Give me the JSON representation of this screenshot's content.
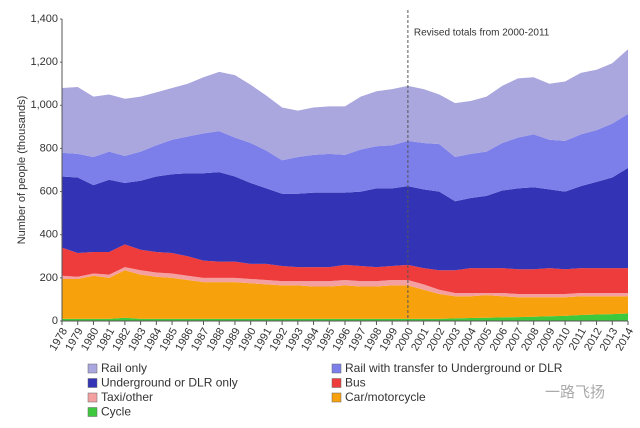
{
  "chart_data": {
    "type": "stacked-area",
    "y_label": "Number of people (thousands)",
    "annotation": {
      "text": "Revised totals from 2000-2011",
      "x": "2000"
    },
    "watermark": "一路飞扬",
    "categories": [
      "1978",
      "1979",
      "1980",
      "1981",
      "1982",
      "1983",
      "1984",
      "1985",
      "1986",
      "1987",
      "1988",
      "1989",
      "1990",
      "1991",
      "1992",
      "1993",
      "1994",
      "1995",
      "1996",
      "1997",
      "1998",
      "1999",
      "2000",
      "2001",
      "2002",
      "2003",
      "2004",
      "2005",
      "2006",
      "2007",
      "2008",
      "2009",
      "2010",
      "2011",
      "2012",
      "2013",
      "2014"
    ],
    "ylim": [
      0,
      1400
    ],
    "yticks": [
      0,
      200,
      400,
      600,
      800,
      {
        "value": 1000,
        "label": "1,000"
      },
      {
        "value": 1200,
        "label": "1,200"
      },
      {
        "value": 1400,
        "label": "1,400"
      }
    ],
    "series": [
      {
        "name": "Rail only",
        "color": "#aaa6de",
        "values": [
          300,
          310,
          280,
          265,
          265,
          255,
          245,
          240,
          245,
          260,
          275,
          290,
          270,
          255,
          245,
          215,
          220,
          220,
          225,
          245,
          255,
          260,
          255,
          250,
          230,
          250,
          245,
          255,
          265,
          275,
          265,
          260,
          275,
          285,
          280,
          280,
          300
        ]
      },
      {
        "name": "Rail with transfer to Underground or DLR",
        "color": "#7c7fea",
        "values": [
          110,
          110,
          130,
          130,
          125,
          135,
          145,
          160,
          170,
          185,
          190,
          180,
          185,
          175,
          155,
          170,
          175,
          180,
          175,
          195,
          195,
          200,
          210,
          215,
          220,
          205,
          205,
          205,
          220,
          235,
          245,
          230,
          235,
          240,
          240,
          250,
          250
        ]
      },
      {
        "name": "Underground or DLR only",
        "color": "#3333b5",
        "values": [
          330,
          350,
          310,
          335,
          285,
          320,
          350,
          365,
          385,
          405,
          415,
          395,
          375,
          350,
          335,
          340,
          345,
          345,
          335,
          345,
          365,
          360,
          365,
          365,
          365,
          320,
          325,
          335,
          360,
          375,
          380,
          365,
          360,
          380,
          400,
          420,
          465
        ]
      },
      {
        "name": "Bus",
        "color": "#ee3b3b",
        "values": [
          130,
          110,
          100,
          105,
          105,
          95,
          95,
          95,
          90,
          80,
          75,
          75,
          70,
          75,
          70,
          65,
          65,
          65,
          70,
          70,
          65,
          65,
          70,
          75,
          90,
          105,
          115,
          115,
          115,
          115,
          115,
          120,
          115,
          115,
          115,
          115,
          115
        ]
      },
      {
        "name": "Taxi/other",
        "color": "#f4a0a0",
        "values": [
          15,
          10,
          10,
          15,
          15,
          20,
          20,
          20,
          20,
          20,
          20,
          20,
          20,
          20,
          20,
          20,
          25,
          25,
          25,
          25,
          25,
          25,
          25,
          25,
          20,
          15,
          15,
          10,
          15,
          15,
          15,
          15,
          15,
          15,
          15,
          15,
          15
        ]
      },
      {
        "name": "Car/motorcycle",
        "color": "#f7a10c",
        "values": [
          185,
          185,
          200,
          190,
          220,
          205,
          195,
          190,
          180,
          170,
          170,
          170,
          165,
          160,
          155,
          155,
          150,
          150,
          155,
          150,
          150,
          155,
          155,
          135,
          115,
          103,
          101,
          105,
          98,
          92,
          90,
          88,
          86,
          87,
          85,
          83,
          80
        ]
      },
      {
        "name": "Cycle",
        "color": "#3ec83e",
        "values": [
          10,
          10,
          10,
          10,
          15,
          10,
          10,
          10,
          10,
          10,
          10,
          10,
          10,
          10,
          10,
          10,
          10,
          10,
          10,
          10,
          10,
          10,
          10,
          10,
          10,
          12,
          14,
          15,
          17,
          18,
          20,
          22,
          24,
          28,
          30,
          32,
          35
        ]
      }
    ]
  }
}
